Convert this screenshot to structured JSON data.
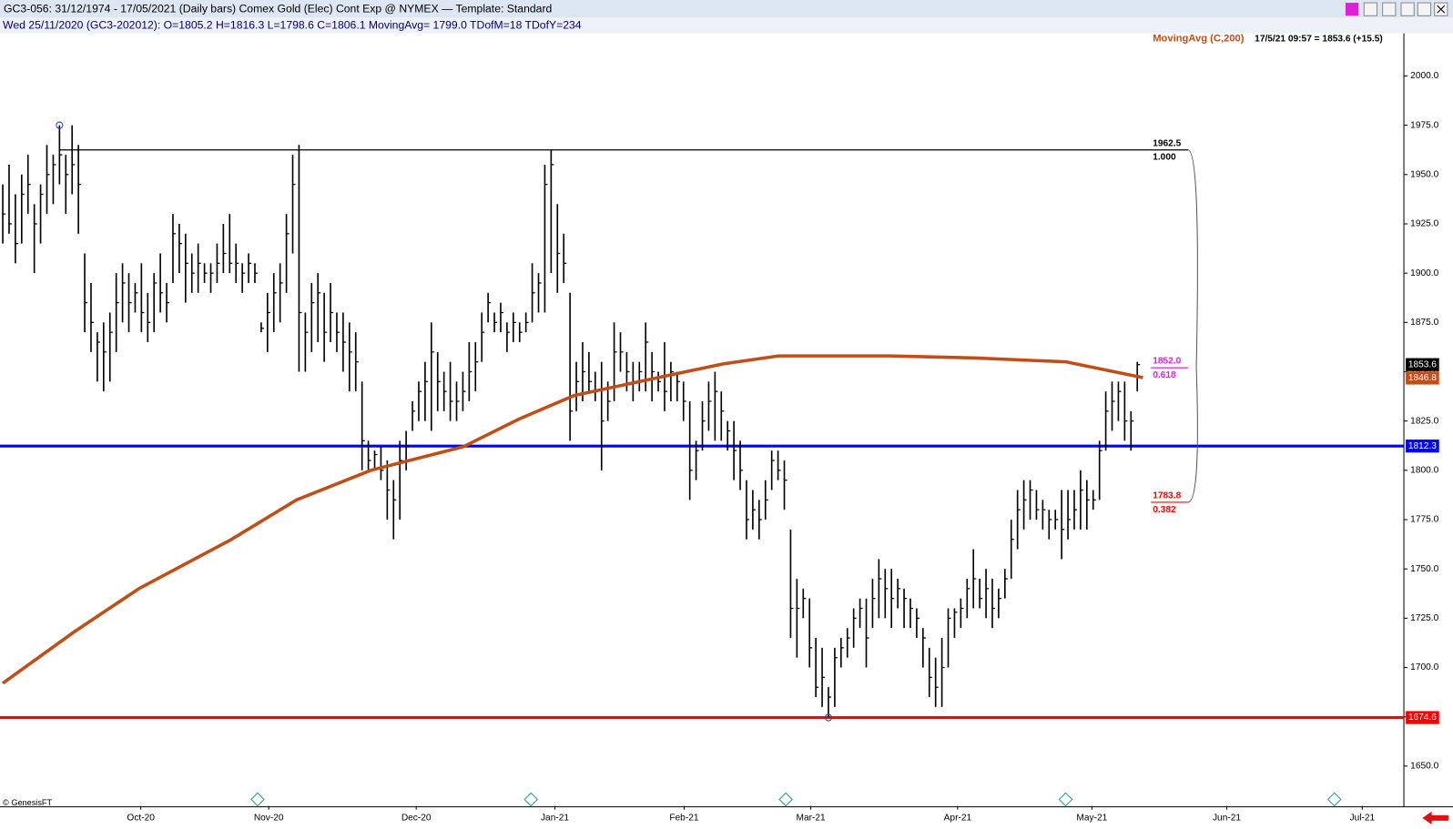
{
  "header": {
    "title": "GC3-056:  31/12/1974 - 17/05/2021  (Daily bars)  Comex Gold (Elec) Cont Exp @ NYMEX  —  Template: Standard",
    "info": "Wed  25/11/2020  (GC3-202012):   O=1805.2   H=1816.3   L=1798.6   C=1806.1   MovingAvg= 1799.0   TDofM=18   TDofY=234",
    "credit": "© GenesisFT"
  },
  "chart_data": {
    "type": "hlc",
    "ylim": [
      1629.8,
      2021.6
    ],
    "yticks": [
      {
        "value": 1650,
        "label": "1650.0"
      },
      {
        "value": 1675,
        "label": "1675.0"
      },
      {
        "value": 1700,
        "label": "1700.0"
      },
      {
        "value": 1725,
        "label": "1725.0"
      },
      {
        "value": 1750,
        "label": "1750.0"
      },
      {
        "value": 1775,
        "label": "1775.0"
      },
      {
        "value": 1800,
        "label": "1800.0"
      },
      {
        "value": 1825,
        "label": "1825.0"
      },
      {
        "value": 1850,
        "label": "1850.0"
      },
      {
        "value": 1875,
        "label": "1875.0"
      },
      {
        "value": 1900,
        "label": "1900.0"
      },
      {
        "value": 1925,
        "label": "1925.0"
      },
      {
        "value": 1950,
        "label": "1950.0"
      },
      {
        "value": 1975,
        "label": "1975.0"
      },
      {
        "value": 2000,
        "label": "2000.0"
      }
    ],
    "xlim": [
      -0.44,
      222.3
    ],
    "xticks": [
      {
        "value": 21.9,
        "label": "Oct-20"
      },
      {
        "value": 42.2,
        "label": "Nov-20"
      },
      {
        "value": 65.6,
        "label": "Dec-20"
      },
      {
        "value": 87.6,
        "label": "Jan-21"
      },
      {
        "value": 108.1,
        "label": "Feb-21"
      },
      {
        "value": 128.2,
        "label": "Mar-21"
      },
      {
        "value": 151.5,
        "label": "Apr-21"
      },
      {
        "value": 172.8,
        "label": "May-21"
      },
      {
        "value": 194.2,
        "label": "Jun-21"
      },
      {
        "value": 215.7,
        "label": "Jul-21"
      }
    ],
    "bar_color": "#000000",
    "hlc": [
      [
        1945,
        1915,
        1930
      ],
      [
        1955,
        1920,
        1925
      ],
      [
        1940,
        1905,
        1915
      ],
      [
        1950,
        1915,
        1940
      ],
      [
        1960,
        1930,
        1945
      ],
      [
        1935,
        1900,
        1925
      ],
      [
        1945,
        1915,
        1940
      ],
      [
        1965,
        1930,
        1950
      ],
      [
        1960,
        1935,
        1955
      ],
      [
        1975,
        1945,
        1960
      ],
      [
        1960,
        1930,
        1950
      ],
      [
        1975,
        1940,
        1955
      ],
      [
        1965,
        1920,
        1945
      ],
      [
        1910,
        1870,
        1885
      ],
      [
        1895,
        1860,
        1875
      ],
      [
        1870,
        1845,
        1865
      ],
      [
        1875,
        1840,
        1860
      ],
      [
        1880,
        1845,
        1870
      ],
      [
        1900,
        1860,
        1885
      ],
      [
        1905,
        1875,
        1895
      ],
      [
        1900,
        1870,
        1885
      ],
      [
        1895,
        1880,
        1890
      ],
      [
        1905,
        1870,
        1880
      ],
      [
        1890,
        1865,
        1875
      ],
      [
        1900,
        1870,
        1895
      ],
      [
        1910,
        1880,
        1890
      ],
      [
        1895,
        1875,
        1885
      ],
      [
        1930,
        1895,
        1920
      ],
      [
        1925,
        1900,
        1915
      ],
      [
        1920,
        1885,
        1905
      ],
      [
        1910,
        1890,
        1900
      ],
      [
        1915,
        1890,
        1905
      ],
      [
        1905,
        1895,
        1900
      ],
      [
        1905,
        1890,
        1900
      ],
      [
        1915,
        1895,
        1905
      ],
      [
        1925,
        1900,
        1910
      ],
      [
        1930,
        1900,
        1905
      ],
      [
        1915,
        1895,
        1905
      ],
      [
        1905,
        1890,
        1900
      ],
      [
        1910,
        1895,
        1905
      ],
      [
        1905,
        1895,
        1900
      ],
      [
        1875,
        1870,
        1872
      ],
      [
        1890,
        1860,
        1880
      ],
      [
        1900,
        1870,
        1890
      ],
      [
        1905,
        1875,
        1895
      ],
      [
        1930,
        1890,
        1920
      ],
      [
        1960,
        1910,
        1945
      ],
      [
        1965,
        1850,
        1880
      ],
      [
        1880,
        1850,
        1870
      ],
      [
        1895,
        1860,
        1885
      ],
      [
        1900,
        1865,
        1890
      ],
      [
        1890,
        1855,
        1870
      ],
      [
        1895,
        1865,
        1880
      ],
      [
        1880,
        1860,
        1870
      ],
      [
        1880,
        1850,
        1865
      ],
      [
        1875,
        1840,
        1860
      ],
      [
        1870,
        1840,
        1855
      ],
      [
        1845,
        1800,
        1815
      ],
      [
        1815,
        1800,
        1805
      ],
      [
        1810,
        1800,
        1808
      ],
      [
        1812,
        1795,
        1800
      ],
      [
        1805,
        1775,
        1790
      ],
      [
        1795,
        1765,
        1785
      ],
      [
        1815,
        1775,
        1805
      ],
      [
        1820,
        1800,
        1812
      ],
      [
        1835,
        1820,
        1830
      ],
      [
        1845,
        1825,
        1840
      ],
      [
        1855,
        1825,
        1845
      ],
      [
        1875,
        1820,
        1860
      ],
      [
        1860,
        1830,
        1845
      ],
      [
        1850,
        1830,
        1840
      ],
      [
        1855,
        1825,
        1835
      ],
      [
        1845,
        1825,
        1835
      ],
      [
        1850,
        1830,
        1840
      ],
      [
        1865,
        1835,
        1850
      ],
      [
        1865,
        1840,
        1855
      ],
      [
        1880,
        1855,
        1870
      ],
      [
        1890,
        1875,
        1885
      ],
      [
        1880,
        1870,
        1875
      ],
      [
        1885,
        1870,
        1880
      ],
      [
        1875,
        1860,
        1870
      ],
      [
        1880,
        1865,
        1875
      ],
      [
        1875,
        1865,
        1870
      ],
      [
        1880,
        1870,
        1875
      ],
      [
        1905,
        1875,
        1890
      ],
      [
        1900,
        1880,
        1895
      ],
      [
        1955,
        1880,
        1945
      ],
      [
        1962.5,
        1900,
        1955
      ],
      [
        1935,
        1890,
        1910
      ],
      [
        1920,
        1895,
        1905
      ],
      [
        1890,
        1815,
        1830
      ],
      [
        1855,
        1830,
        1845
      ],
      [
        1865,
        1835,
        1850
      ],
      [
        1860,
        1840,
        1845
      ],
      [
        1850,
        1835,
        1840
      ],
      [
        1855,
        1800,
        1825
      ],
      [
        1845,
        1825,
        1835
      ],
      [
        1875,
        1835,
        1860
      ],
      [
        1870,
        1850,
        1860
      ],
      [
        1860,
        1840,
        1850
      ],
      [
        1855,
        1835,
        1845
      ],
      [
        1855,
        1840,
        1850
      ],
      [
        1875,
        1840,
        1865
      ],
      [
        1860,
        1835,
        1850
      ],
      [
        1850,
        1840,
        1845
      ],
      [
        1865,
        1830,
        1840
      ],
      [
        1855,
        1835,
        1850
      ],
      [
        1850,
        1835,
        1845
      ],
      [
        1845,
        1825,
        1835
      ],
      [
        1835,
        1785,
        1800
      ],
      [
        1815,
        1795,
        1810
      ],
      [
        1835,
        1810,
        1825
      ],
      [
        1845,
        1820,
        1835
      ],
      [
        1850,
        1815,
        1840
      ],
      [
        1840,
        1815,
        1830
      ],
      [
        1825,
        1810,
        1820
      ],
      [
        1825,
        1795,
        1810
      ],
      [
        1815,
        1790,
        1800
      ],
      [
        1795,
        1765,
        1775
      ],
      [
        1790,
        1770,
        1780
      ],
      [
        1785,
        1765,
        1775
      ],
      [
        1795,
        1775,
        1785
      ],
      [
        1810,
        1790,
        1805
      ],
      [
        1810,
        1795,
        1800
      ],
      [
        1805,
        1780,
        1795
      ],
      [
        1770,
        1715,
        1730
      ],
      [
        1745,
        1705,
        1730
      ],
      [
        1740,
        1725,
        1735
      ],
      [
        1735,
        1700,
        1710
      ],
      [
        1715,
        1685,
        1690
      ],
      [
        1710,
        1680,
        1695
      ],
      [
        1690,
        1674.6,
        1685
      ],
      [
        1710,
        1680,
        1705
      ],
      [
        1715,
        1700,
        1710
      ],
      [
        1720,
        1705,
        1715
      ],
      [
        1730,
        1710,
        1725
      ],
      [
        1735,
        1720,
        1730
      ],
      [
        1735,
        1700,
        1715
      ],
      [
        1745,
        1720,
        1735
      ],
      [
        1755,
        1725,
        1745
      ],
      [
        1750,
        1725,
        1740
      ],
      [
        1750,
        1720,
        1735
      ],
      [
        1745,
        1730,
        1740
      ],
      [
        1740,
        1720,
        1735
      ],
      [
        1735,
        1720,
        1730
      ],
      [
        1730,
        1715,
        1725
      ],
      [
        1720,
        1700,
        1715
      ],
      [
        1710,
        1685,
        1695
      ],
      [
        1705,
        1680,
        1690
      ],
      [
        1715,
        1680,
        1700
      ],
      [
        1730,
        1700,
        1725
      ],
      [
        1730,
        1715,
        1728
      ],
      [
        1735,
        1720,
        1730
      ],
      [
        1745,
        1725,
        1740
      ],
      [
        1760,
        1730,
        1745
      ],
      [
        1745,
        1730,
        1735
      ],
      [
        1750,
        1725,
        1740
      ],
      [
        1745,
        1720,
        1730
      ],
      [
        1740,
        1725,
        1735
      ],
      [
        1750,
        1735,
        1745
      ],
      [
        1775,
        1745,
        1765
      ],
      [
        1790,
        1760,
        1780
      ],
      [
        1795,
        1770,
        1785
      ],
      [
        1795,
        1775,
        1790
      ],
      [
        1790,
        1775,
        1780
      ],
      [
        1785,
        1770,
        1780
      ],
      [
        1780,
        1765,
        1775
      ],
      [
        1780,
        1770,
        1775
      ],
      [
        1790,
        1755,
        1770
      ],
      [
        1790,
        1765,
        1775
      ],
      [
        1790,
        1770,
        1780
      ],
      [
        1800,
        1770,
        1790
      ],
      [
        1795,
        1770,
        1785
      ],
      [
        1790,
        1780,
        1785
      ],
      [
        1815,
        1785,
        1810
      ],
      [
        1840,
        1810,
        1830
      ],
      [
        1845,
        1820,
        1835
      ],
      [
        1845,
        1825,
        1840
      ],
      [
        1845,
        1815,
        1825
      ],
      [
        1830,
        1810,
        1825
      ],
      [
        1855,
        1840,
        1853.6
      ]
    ],
    "ma": {
      "name": "MovingAvg (C,200)",
      "color": "#c24e17",
      "x": [
        0,
        11.3,
        21.6,
        36.3,
        46.6,
        58.4,
        73.1,
        81.9,
        90.7,
        102.5,
        114.3,
        123.1,
        140.7,
        154.0,
        168.7,
        180.9
      ],
      "values": [
        1692,
        1718,
        1740,
        1765,
        1785,
        1800,
        1812,
        1826,
        1838,
        1846,
        1854,
        1858,
        1858,
        1857,
        1855,
        1847
      ]
    },
    "quote": "17/5/21 09:57 = 1853.6 (+15.5)",
    "last_price": 1853.6,
    "ma_last": 1846.8,
    "levels": [
      {
        "value": 1812.3,
        "color": "#0000ff"
      },
      {
        "value": 1674.6,
        "color": "#ff0000"
      }
    ],
    "fib": [
      {
        "price": 1962.5,
        "ratio": {
          "value": 1,
          "label": "1.000"
        },
        "color": "#000000"
      },
      {
        "price": {
          "value": 1852,
          "label": "1852.0"
        },
        "ratio": 0.618,
        "color": "#e020e0"
      },
      {
        "price": 1783.8,
        "ratio": 0.382,
        "color": "#ff0000"
      }
    ]
  }
}
